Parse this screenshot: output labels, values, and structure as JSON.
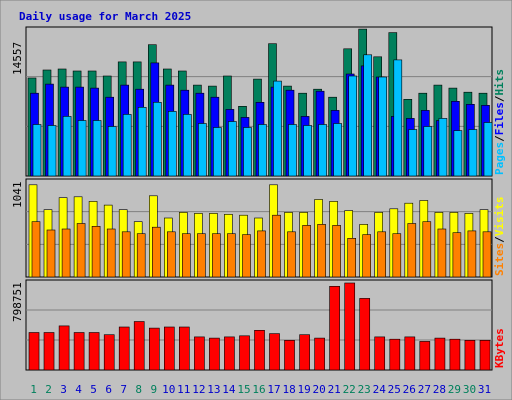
{
  "colors": {
    "frame_bg": "#c0c0c0",
    "plot_bg": "#c0c0c0",
    "grid": "#808080",
    "title": "#0000cc",
    "hits": "#00805c",
    "files": "#0000ff",
    "pages": "#00c0ff",
    "visits": "#ffff00",
    "sites": "#ff8000",
    "kbytes": "#ff0000",
    "day_normal": "#0000cc",
    "day_weekend": "#00805c"
  },
  "chart_data": [
    {
      "type": "bar",
      "title": "Daily usage for March 2025",
      "ymax_label": "14557",
      "ylim": [
        0,
        14557
      ],
      "grid": true,
      "legend": "right",
      "categories": [
        "1",
        "2",
        "3",
        "4",
        "5",
        "6",
        "7",
        "8",
        "9",
        "10",
        "11",
        "12",
        "13",
        "14",
        "15",
        "16",
        "17",
        "18",
        "19",
        "20",
        "21",
        "22",
        "23",
        "24",
        "25",
        "26",
        "27",
        "28",
        "29",
        "30",
        "31"
      ],
      "weekend_days": [
        "1",
        "2",
        "8",
        "9",
        "15",
        "16",
        "22",
        "23",
        "29",
        "30"
      ],
      "series": [
        {
          "name": "Hits",
          "values": [
            9700,
            10500,
            10600,
            10400,
            10400,
            9900,
            11300,
            11300,
            13000,
            10600,
            10400,
            9000,
            8900,
            9900,
            6900,
            9600,
            13100,
            8900,
            8200,
            8600,
            7800,
            12600,
            14550,
            11800,
            14200,
            7600,
            8200,
            9000,
            8700,
            8300,
            8200
          ]
        },
        {
          "name": "Files",
          "values": [
            8200,
            9100,
            8800,
            8800,
            8700,
            7800,
            9000,
            8600,
            11200,
            9000,
            8500,
            8200,
            7800,
            6600,
            5800,
            7300,
            8800,
            8500,
            5900,
            8400,
            6500,
            10100,
            10900,
            9800,
            5900,
            5700,
            6500,
            5500,
            7400,
            7100,
            7000
          ]
        },
        {
          "name": "Pages",
          "values": [
            5100,
            5000,
            5900,
            5500,
            5500,
            4900,
            6100,
            6800,
            7300,
            6400,
            6100,
            5200,
            4800,
            5400,
            4800,
            5100,
            9400,
            5100,
            5000,
            5100,
            5200,
            9900,
            12000,
            9800,
            11500,
            4600,
            4900,
            5700,
            4500,
            4600,
            5300
          ]
        }
      ],
      "legend_labels": [
        "Pages",
        "Files",
        "Hits"
      ]
    },
    {
      "type": "bar",
      "ymax_label": "1041",
      "ylim": [
        0,
        1041
      ],
      "grid": true,
      "legend": "right",
      "categories": [
        "1",
        "2",
        "3",
        "4",
        "5",
        "6",
        "7",
        "8",
        "9",
        "10",
        "11",
        "12",
        "13",
        "14",
        "15",
        "16",
        "17",
        "18",
        "19",
        "20",
        "21",
        "22",
        "23",
        "24",
        "25",
        "26",
        "27",
        "28",
        "29",
        "30",
        "31"
      ],
      "series": [
        {
          "name": "Visits",
          "values": [
            1000,
            730,
            860,
            870,
            820,
            780,
            730,
            600,
            880,
            640,
            700,
            690,
            690,
            680,
            670,
            640,
            1000,
            700,
            700,
            840,
            820,
            720,
            570,
            700,
            740,
            800,
            830,
            700,
            700,
            690,
            730
          ]
        },
        {
          "name": "Sites",
          "values": [
            600,
            510,
            520,
            580,
            550,
            520,
            490,
            470,
            540,
            490,
            470,
            470,
            470,
            470,
            460,
            500,
            670,
            490,
            560,
            570,
            560,
            420,
            460,
            490,
            470,
            580,
            600,
            520,
            480,
            500,
            490
          ]
        }
      ],
      "legend_labels": [
        "Sites",
        "Visits"
      ]
    },
    {
      "type": "bar",
      "ymax_label": "798751",
      "ylim": [
        0,
        798751
      ],
      "grid": true,
      "legend": "right",
      "categories": [
        "1",
        "2",
        "3",
        "4",
        "5",
        "6",
        "7",
        "8",
        "9",
        "10",
        "11",
        "12",
        "13",
        "14",
        "15",
        "16",
        "17",
        "18",
        "19",
        "20",
        "21",
        "22",
        "23",
        "24",
        "25",
        "26",
        "27",
        "28",
        "29",
        "30",
        "31"
      ],
      "series": [
        {
          "name": "KBytes",
          "values": [
            340000,
            340000,
            400000,
            340000,
            340000,
            320000,
            390000,
            440000,
            380000,
            390000,
            390000,
            300000,
            290000,
            300000,
            310000,
            360000,
            330000,
            270000,
            320000,
            290000,
            760000,
            790000,
            650000,
            300000,
            280000,
            300000,
            260000,
            290000,
            280000,
            270000,
            270000
          ]
        }
      ],
      "legend_labels": [
        "KBytes"
      ]
    }
  ]
}
